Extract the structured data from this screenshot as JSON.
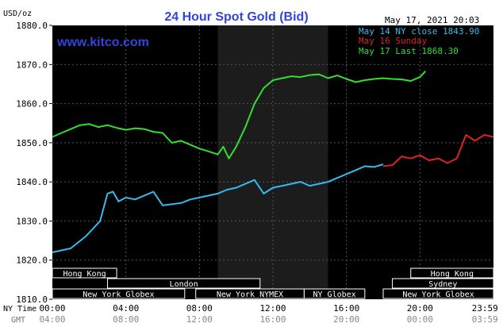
{
  "chart_data": {
    "type": "line",
    "title": "24 Hour Spot Gold (Bid)",
    "ylabel": "USD/oz",
    "timestamp": "May 17, 2021 20:03",
    "watermark": "www.kitco.com",
    "ylim": [
      1810,
      1880
    ],
    "xlim": [
      0,
      24
    ],
    "y_ticks": [
      "1810.0",
      "1820.0",
      "1830.0",
      "1840.0",
      "1850.0",
      "1860.0",
      "1870.0",
      "1880.0"
    ],
    "x_ticks": [
      {
        "ny": "00:00",
        "gmt": "04:00"
      },
      {
        "ny": "04:00",
        "gmt": "08:00"
      },
      {
        "ny": "08:00",
        "gmt": "12:00"
      },
      {
        "ny": "12:00",
        "gmt": "16:00"
      },
      {
        "ny": "16:00",
        "gmt": "20:00"
      },
      {
        "ny": "20:00",
        "gmt": "00:00"
      },
      {
        "ny": "23:59",
        "gmt": "03:59"
      }
    ],
    "x_axis_labels": {
      "ny": "NY Time",
      "gmt": "GMT"
    },
    "legend_position": "top-right",
    "shaded_region": [
      9.0,
      15.0
    ],
    "series": [
      {
        "name": "May 14 NY close 1843.90",
        "color": "#33bbee",
        "x": [
          0,
          0.5,
          1,
          1.4,
          1.8,
          2.2,
          2.6,
          3.0,
          3.3,
          3.6,
          4.0,
          4.5,
          5.0,
          5.5,
          6.0,
          6.5,
          7.0,
          7.5,
          8.0,
          8.5,
          9.0,
          9.5,
          10.0,
          10.5,
          11.0,
          11.5,
          12.0,
          12.5,
          13.0,
          13.5,
          14.0,
          14.5,
          15.0,
          15.5,
          16.0,
          16.5,
          17.0,
          17.5,
          18.0
        ],
        "values": [
          1822,
          1822.5,
          1823,
          1824.5,
          1826,
          1828,
          1830,
          1837,
          1837.5,
          1835,
          1836,
          1835.5,
          1836.5,
          1837.5,
          1834,
          1834.3,
          1834.6,
          1835.5,
          1836,
          1836.5,
          1837,
          1838,
          1838.5,
          1839.5,
          1840.5,
          1837,
          1838.5,
          1839,
          1839.5,
          1840,
          1839,
          1839.5,
          1840,
          1841,
          1842,
          1843,
          1844,
          1843.8,
          1844.5
        ]
      },
      {
        "name": "May 16 Sunday",
        "color": "#dd2222",
        "x": [
          18.0,
          18.5,
          19.0,
          19.5,
          20.0,
          20.5,
          21.0,
          21.5,
          22.0,
          22.5,
          23.0,
          23.5,
          23.99
        ],
        "values": [
          1844,
          1844.3,
          1846.5,
          1846,
          1846.8,
          1845.5,
          1846,
          1844.8,
          1846,
          1852,
          1850.5,
          1852,
          1851.5
        ]
      },
      {
        "name": "May 17 Last 1868.30",
        "color": "#33dd33",
        "x": [
          0,
          0.5,
          1,
          1.5,
          2,
          2.5,
          3,
          3.5,
          4,
          4.5,
          5,
          5.5,
          6,
          6.5,
          7,
          7.5,
          8,
          8.5,
          9,
          9.3,
          9.6,
          10.0,
          10.5,
          11.0,
          11.5,
          12.0,
          12.5,
          13.0,
          13.5,
          14.0,
          14.5,
          15.0,
          15.5,
          16.0,
          16.5,
          17.0,
          17.5,
          18.0,
          18.5,
          19.0,
          19.5,
          20.0,
          20.3
        ],
        "values": [
          1851.5,
          1852.5,
          1853.5,
          1854.5,
          1854.8,
          1854,
          1854.5,
          1853.8,
          1853.3,
          1853.7,
          1853.5,
          1852.8,
          1852.5,
          1850,
          1850.5,
          1849.5,
          1848.5,
          1847.8,
          1847,
          1849,
          1846,
          1849,
          1854,
          1860,
          1864,
          1866,
          1866.5,
          1867,
          1866.8,
          1867.3,
          1867.5,
          1866.5,
          1867.2,
          1866.3,
          1865.5,
          1866,
          1866.3,
          1866.5,
          1866.3,
          1866.2,
          1865.8,
          1866.8,
          1868.3
        ]
      }
    ],
    "sessions": [
      {
        "name": "Hong Kong",
        "start": 0.0,
        "end": 3.5,
        "row": 0
      },
      {
        "name": "London",
        "start": 3.0,
        "end": 11.3,
        "row": 1
      },
      {
        "name": "New York Globex",
        "start": 0.0,
        "end": 7.2,
        "row": 2
      },
      {
        "name": "New York NYMEX",
        "start": 7.8,
        "end": 13.7,
        "row": 2
      },
      {
        "name": "NY Globex",
        "start": 13.7,
        "end": 17.0,
        "row": 2
      },
      {
        "name": "Hong Kong",
        "start": 19.5,
        "end": 24.0,
        "row": 0
      },
      {
        "name": "Sydney",
        "start": 18.5,
        "end": 24.0,
        "row": 1
      },
      {
        "name": "New York Globex",
        "start": 18.0,
        "end": 24.0,
        "row": 2
      }
    ],
    "colors": {
      "background": "#000000",
      "shaded": "#1c1c1c",
      "grid": "#555555",
      "axis_text": "#000000",
      "title": "#3344dd",
      "session_text": "#ffffff",
      "session_border": "#ffffff"
    }
  }
}
